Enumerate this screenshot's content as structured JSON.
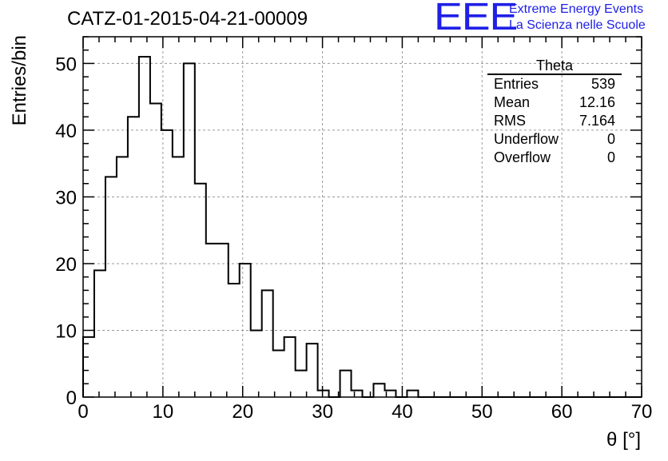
{
  "header": {
    "run_title": "CATZ-01-2015-04-21-00009"
  },
  "logo": {
    "mark": "EEE",
    "line1": "Extreme Energy Events",
    "line2": "La Scienza nelle Scuole",
    "color": "#1f1fe6"
  },
  "stats_box": {
    "title": "Theta",
    "rows": [
      {
        "label": "Entries",
        "value": "539"
      },
      {
        "label": "Mean",
        "value": "12.16"
      },
      {
        "label": "RMS",
        "value": "7.164"
      },
      {
        "label": "Underflow",
        "value": "0"
      },
      {
        "label": "Overflow",
        "value": "0"
      }
    ]
  },
  "chart_data": {
    "type": "bar",
    "style": "step-histogram",
    "xlabel": "θ [°]",
    "ylabel": "Entries/bin",
    "xlim": [
      0,
      70
    ],
    "ylim": [
      0,
      54
    ],
    "bin_width": 1.4,
    "x_ticks": [
      0,
      10,
      20,
      30,
      40,
      50,
      60,
      70
    ],
    "y_ticks": [
      0,
      10,
      20,
      30,
      40,
      50
    ],
    "grid": true,
    "values": [
      9,
      19,
      33,
      36,
      42,
      51,
      44,
      40,
      36,
      50,
      32,
      23,
      23,
      17,
      20,
      10,
      16,
      7,
      9,
      4,
      8,
      1,
      0,
      4,
      1,
      0,
      2,
      1,
      0,
      1,
      0,
      0,
      0,
      0,
      0,
      0,
      0,
      0,
      0,
      0,
      0,
      0,
      0,
      0,
      0,
      0,
      0,
      0,
      0,
      0
    ]
  }
}
